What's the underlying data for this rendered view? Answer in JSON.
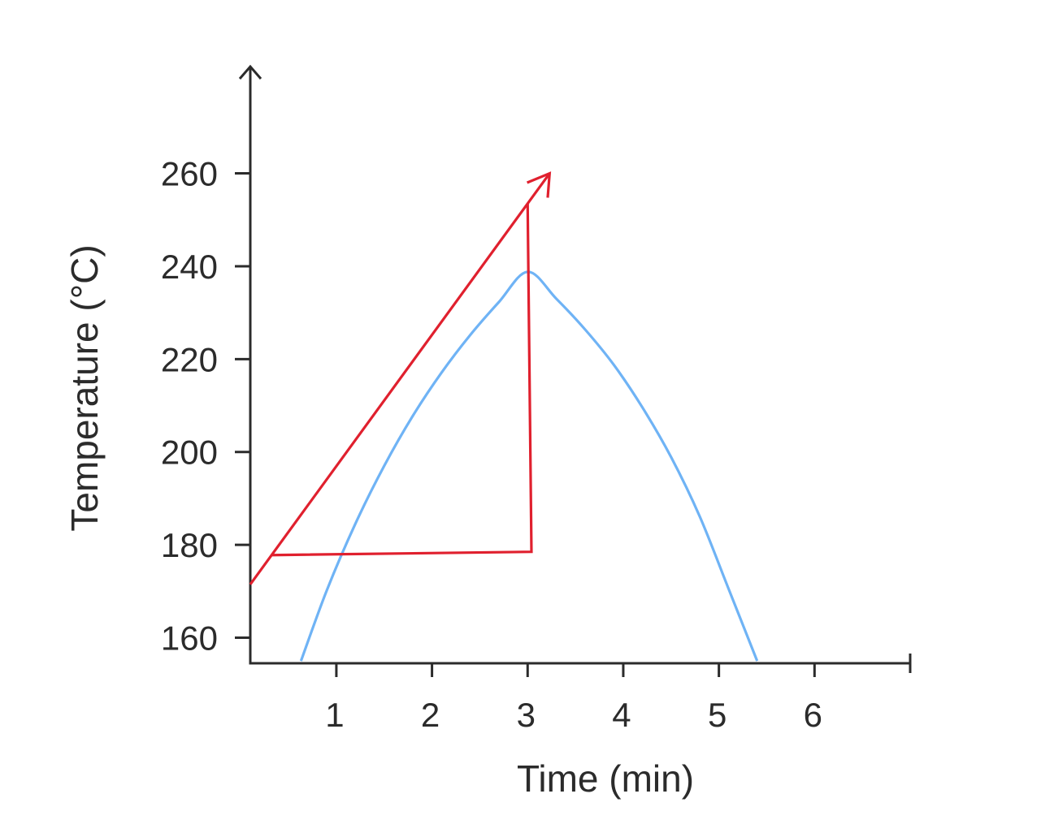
{
  "chart_data": {
    "type": "line",
    "title": "",
    "xlabel": "Time (min)",
    "ylabel": "Temperature (°C)",
    "xlim": [
      0.1,
      7.0
    ],
    "ylim": [
      154.5,
      283
    ],
    "xticks": [
      1,
      2,
      3,
      4,
      5,
      6
    ],
    "yticks": [
      160,
      180,
      200,
      220,
      240,
      260
    ],
    "grid": false,
    "legend": "none",
    "series": [
      {
        "kind": "curve",
        "color": "#6fb3f5",
        "x": [
          0.63,
          0.9,
          1.2,
          1.5,
          1.8,
          2.1,
          2.4,
          2.7,
          3.0,
          3.3,
          3.6,
          3.9,
          4.2,
          4.5,
          4.8,
          5.1,
          5.4
        ],
        "y": [
          155,
          170.2,
          184.6,
          197.0,
          207.8,
          217.1,
          225.2,
          232.3,
          238.8,
          233.0,
          226.4,
          218.8,
          209.6,
          198.9,
          186.1,
          170.6,
          155
        ]
      },
      {
        "kind": "tangent-arrow",
        "color": "#e0202e",
        "x": [
          0.1,
          3.23
        ],
        "y": [
          171.5,
          260
        ]
      },
      {
        "kind": "slope-triangle",
        "color": "#e0202e",
        "x": [
          0.33,
          3.04,
          3.0
        ],
        "y": [
          177.8,
          178.5,
          253.5
        ]
      }
    ]
  }
}
